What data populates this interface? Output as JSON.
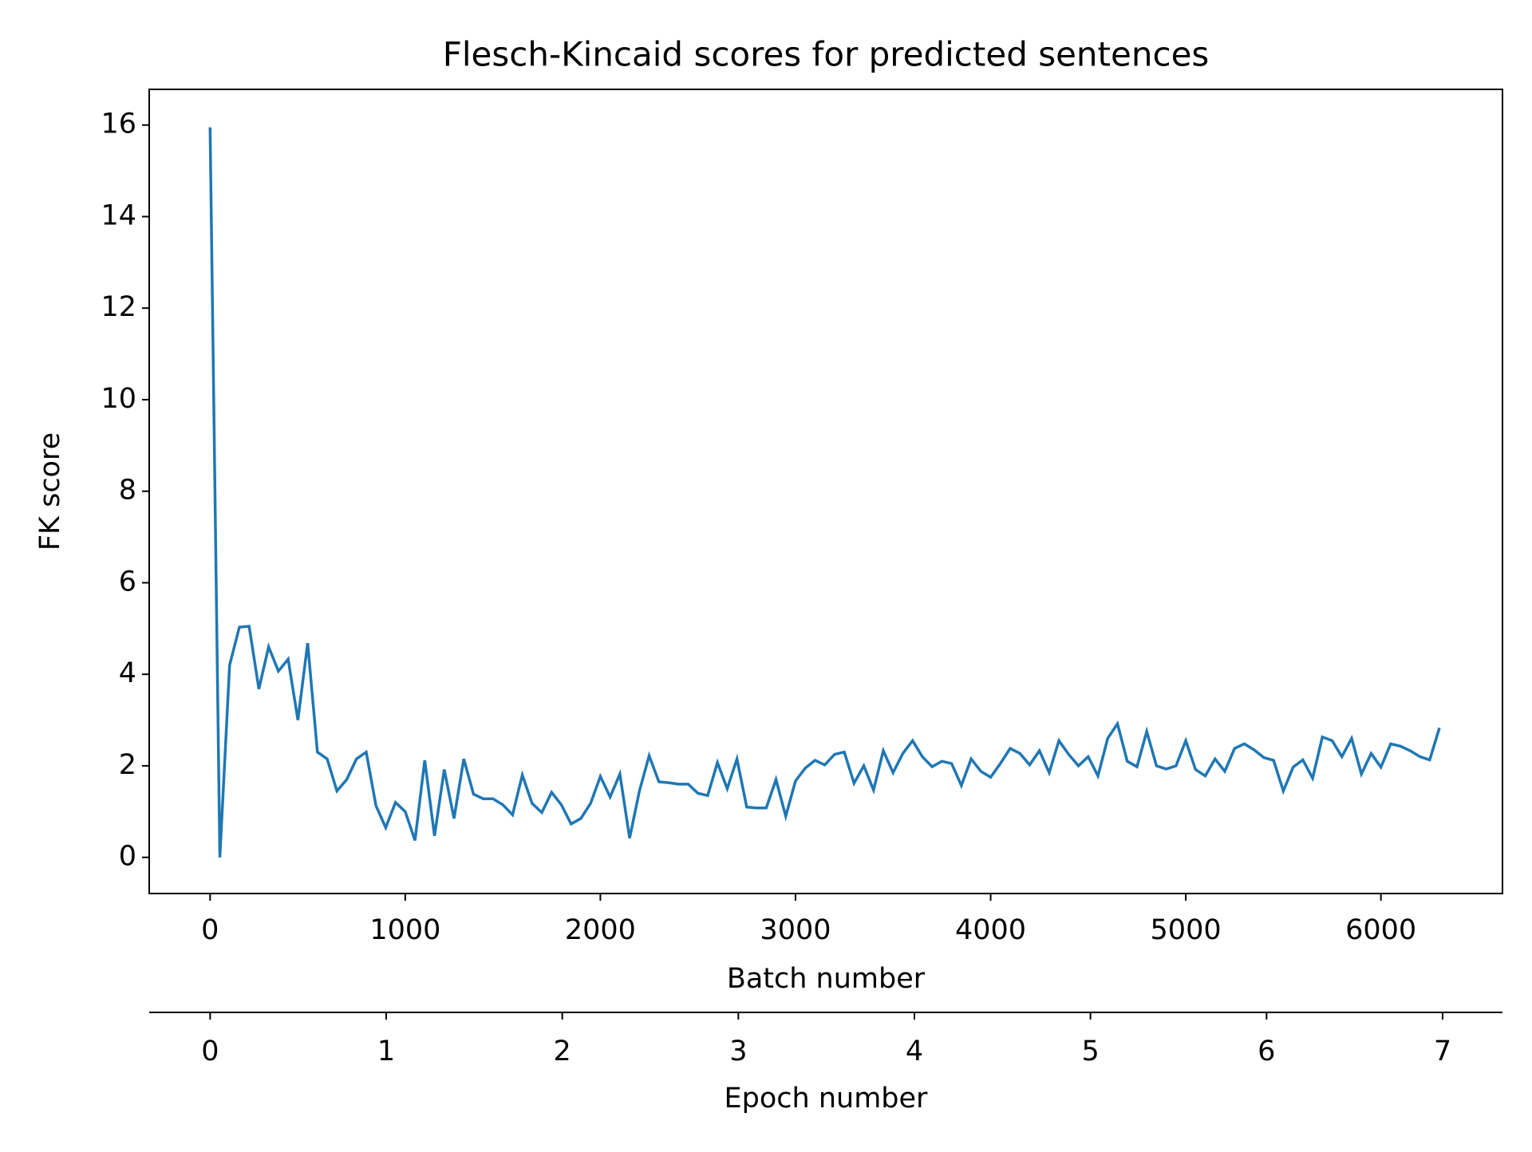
{
  "chart_data": {
    "type": "line",
    "title": "Flesch-Kincaid scores for predicted sentences",
    "xlabel": "Batch number",
    "ylabel": "FK score",
    "x2label": "Epoch number",
    "x": [
      0,
      50,
      100,
      150,
      200,
      250,
      300,
      350,
      400,
      450,
      500,
      550,
      600,
      650,
      700,
      750,
      800,
      850,
      900,
      950,
      1000,
      1050,
      1100,
      1150,
      1200,
      1250,
      1300,
      1350,
      1400,
      1450,
      1500,
      1550,
      1600,
      1650,
      1700,
      1750,
      1800,
      1850,
      1900,
      1950,
      2000,
      2050,
      2100,
      2150,
      2200,
      2250,
      2300,
      2350,
      2400,
      2450,
      2500,
      2550,
      2600,
      2650,
      2700,
      2750,
      2800,
      2850,
      2900,
      2950,
      3000,
      3050,
      3100,
      3150,
      3200,
      3250,
      3300,
      3350,
      3400,
      3450,
      3500,
      3550,
      3600,
      3650,
      3700,
      3750,
      3800,
      3850,
      3900,
      3950,
      4000,
      4050,
      4100,
      4150,
      4200,
      4250,
      4300,
      4350,
      4400,
      4450,
      4500,
      4550,
      4600,
      4650,
      4700,
      4750,
      4800,
      4850,
      4900,
      4950,
      5000,
      5050,
      5100,
      5150,
      5200,
      5250,
      5300,
      5350,
      5400,
      5450,
      5500,
      5550,
      5600,
      5650,
      5700,
      5750,
      5800,
      5850,
      5900,
      5950,
      6000,
      6050,
      6100,
      6150,
      6200,
      6250,
      6300
    ],
    "series": [
      {
        "name": "FK score",
        "color": "#1f77b4",
        "values": [
          15.95,
          0,
          4.2,
          5.03,
          5.05,
          3.68,
          4.6,
          4.07,
          4.33,
          3.0,
          4.68,
          2.3,
          2.15,
          1.45,
          1.7,
          2.15,
          2.3,
          1.13,
          0.65,
          1.2,
          1.0,
          0.37,
          2.12,
          0.47,
          1.92,
          0.85,
          2.15,
          1.38,
          1.28,
          1.28,
          1.15,
          0.93,
          1.8,
          1.18,
          0.98,
          1.42,
          1.15,
          0.73,
          0.85,
          1.18,
          1.77,
          1.32,
          1.82,
          0.42,
          1.45,
          2.22,
          1.65,
          1.63,
          1.6,
          1.6,
          1.4,
          1.35,
          2.07,
          1.5,
          2.15,
          1.1,
          1.08,
          1.08,
          1.7,
          0.9,
          1.67,
          1.95,
          2.12,
          2.02,
          2.25,
          2.3,
          1.62,
          2.0,
          1.47,
          2.33,
          1.85,
          2.27,
          2.55,
          2.2,
          1.98,
          2.1,
          2.05,
          1.57,
          2.15,
          1.88,
          1.75,
          2.05,
          2.38,
          2.27,
          2.02,
          2.33,
          1.85,
          2.55,
          2.25,
          2.0,
          2.2,
          1.78,
          2.6,
          2.92,
          2.1,
          1.98,
          2.75,
          2.0,
          1.93,
          2.0,
          2.55,
          1.92,
          1.78,
          2.15,
          1.88,
          2.38,
          2.48,
          2.35,
          2.18,
          2.12,
          1.45,
          1.97,
          2.13,
          1.73,
          2.63,
          2.55,
          2.2,
          2.6,
          1.82,
          2.27,
          1.97,
          2.48,
          2.43,
          2.33,
          2.2,
          2.13,
          2.83
        ]
      }
    ],
    "xlim": [
      -312,
      6623
    ],
    "xticks": [
      0,
      1000,
      2000,
      3000,
      4000,
      5000,
      6000
    ],
    "ylim": [
      -0.79,
      16.78
    ],
    "yticks": [
      0,
      2,
      4,
      6,
      8,
      10,
      12,
      14,
      16
    ],
    "x2lim": [
      -0.346,
      7.34
    ],
    "x2ticks": [
      0,
      1,
      2,
      3,
      4,
      5,
      6,
      7
    ]
  }
}
